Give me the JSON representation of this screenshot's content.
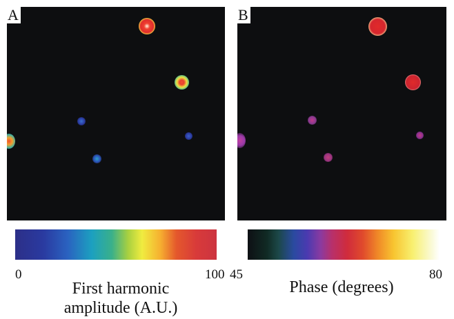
{
  "panel_a": {
    "letter": "A",
    "colorbar": {
      "min_label": "0",
      "max_label": "100",
      "caption_line1": "First harmonic",
      "caption_line2": "amplitude (A.U.)",
      "scale": "blue-cyan-green-yellow-red"
    }
  },
  "panel_b": {
    "letter": "B",
    "colorbar": {
      "min_label": "45",
      "max_label": "80",
      "caption": "Phase (degrees)",
      "scale": "black-teal-blue-purple-red-orange-yellow-white"
    }
  },
  "colors": {
    "background": "#0d0e10",
    "amplitude_high": "#e02c2c",
    "amplitude_low": "#2a3aa0",
    "phase_high": "#d6262e",
    "phase_low": "#a0307a"
  }
}
